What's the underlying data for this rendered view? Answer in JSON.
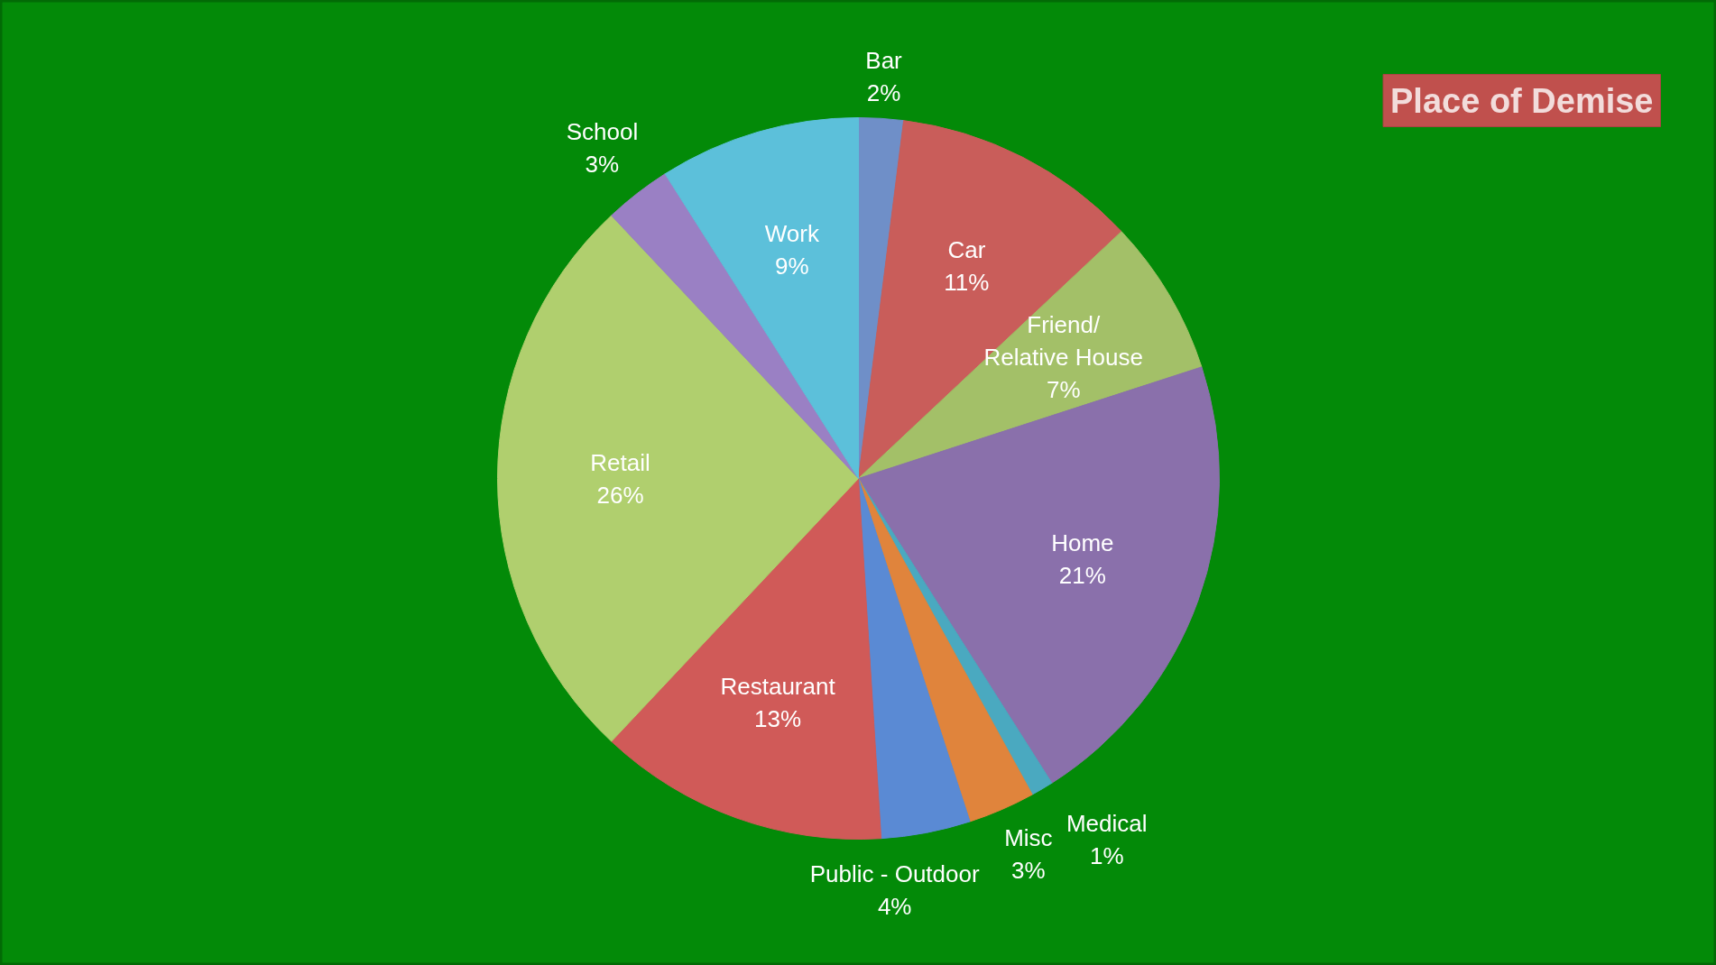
{
  "chart_data": {
    "type": "pie",
    "title": "Place of Demise",
    "categories": [
      "Bar",
      "Car",
      "Friend/\nRelative House",
      "Home",
      "Medical",
      "Misc",
      "Public - Outdoor",
      "Restaurant",
      "Retail",
      "School",
      "Work"
    ],
    "values": [
      2,
      11,
      7,
      21,
      1,
      3,
      4,
      13,
      26,
      3,
      9
    ],
    "value_labels": [
      "2%",
      "11%",
      "7%",
      "21%",
      "1%",
      "3%",
      "4%",
      "13%",
      "26%",
      "3%",
      "9%"
    ],
    "colors": [
      "#6f8fc8",
      "#c95d5a",
      "#a3c068",
      "#8a70ab",
      "#4aa9c0",
      "#e0843c",
      "#5a8ad4",
      "#d05a58",
      "#b0cf6e",
      "#9a80c4",
      "#5cc0da"
    ]
  }
}
